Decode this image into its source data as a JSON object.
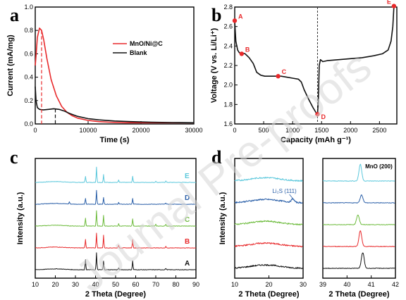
{
  "watermark": "Journal Pre-proofs",
  "colors": {
    "red": "#e8292b",
    "black": "#111111",
    "cyan": "#5cc8dc",
    "blue": "#2a5fa8",
    "green": "#6dbb3c"
  },
  "chart_data": [
    {
      "panel": "a",
      "type": "line",
      "xlabel": "Time (s)",
      "ylabel": "Current (mA/mg)",
      "xlim": [
        0,
        30000
      ],
      "ylim": [
        0,
        1.0
      ],
      "xticks": [
        0,
        10000,
        20000,
        30000
      ],
      "yticks": [
        0.0,
        0.2,
        0.4,
        0.6,
        0.8,
        1.0
      ],
      "legend_position": "top-right",
      "series": [
        {
          "name": "MnO/Ni@C",
          "color": "red",
          "x": [
            0,
            150,
            400,
            800,
            1200,
            1600,
            2200,
            3000,
            4000,
            5000,
            6000,
            7000,
            8000,
            9000,
            10000,
            12000,
            14000,
            17000,
            20000,
            25000,
            30000
          ],
          "y": [
            0.5,
            0.58,
            0.74,
            0.82,
            0.8,
            0.72,
            0.56,
            0.38,
            0.24,
            0.15,
            0.1,
            0.07,
            0.05,
            0.04,
            0.03,
            0.02,
            0.015,
            0.01,
            0.01,
            0.01,
            0.01
          ]
        },
        {
          "name": "Blank",
          "color": "black",
          "x": [
            0,
            150,
            400,
            800,
            1500,
            2500,
            3500,
            4500,
            5500,
            6500,
            8000,
            10000,
            12000,
            15000,
            18000,
            22000,
            26000,
            30000
          ],
          "y": [
            0.32,
            0.2,
            0.14,
            0.125,
            0.12,
            0.125,
            0.13,
            0.125,
            0.11,
            0.09,
            0.065,
            0.045,
            0.035,
            0.025,
            0.02,
            0.015,
            0.012,
            0.01
          ]
        }
      ],
      "markers": [
        {
          "series": "MnO/Ni@C",
          "x": 1200
        },
        {
          "series": "Blank",
          "x": 3800
        }
      ]
    },
    {
      "panel": "b",
      "type": "line",
      "xlabel": "Capacity (mAh g⁻¹)",
      "ylabel": "Voltage (V vs. Li/Li⁺)",
      "xlim": [
        0,
        2800
      ],
      "ylim": [
        1.6,
        2.8
      ],
      "xticks": [
        0,
        500,
        1000,
        1500,
        2000,
        2500
      ],
      "yticks": [
        1.6,
        1.8,
        2.0,
        2.2,
        2.4,
        2.6,
        2.8
      ],
      "series": [
        {
          "name": "",
          "color": "black",
          "x": [
            0,
            20,
            50,
            80,
            120,
            180,
            250,
            320,
            380,
            450,
            520,
            600,
            700,
            800,
            900,
            1000,
            1100,
            1150,
            1200,
            1280,
            1350,
            1400,
            1430
          ],
          "y": [
            2.65,
            2.45,
            2.36,
            2.33,
            2.33,
            2.32,
            2.28,
            2.22,
            2.13,
            2.1,
            2.09,
            2.09,
            2.09,
            2.09,
            2.08,
            2.07,
            2.06,
            2.03,
            1.95,
            1.85,
            1.77,
            1.72,
            1.7
          ]
        },
        {
          "name": "",
          "color": "black",
          "x": [
            1430,
            1445,
            1460,
            1480,
            1520,
            1600,
            1800,
            2000,
            2200,
            2400,
            2550,
            2650,
            2700,
            2730,
            2750
          ],
          "y": [
            1.7,
            1.85,
            2.2,
            2.26,
            2.24,
            2.25,
            2.26,
            2.27,
            2.28,
            2.3,
            2.32,
            2.36,
            2.45,
            2.6,
            2.81
          ]
        }
      ],
      "points": [
        {
          "label": "A",
          "x": 0,
          "y": 2.66
        },
        {
          "label": "B",
          "x": 120,
          "y": 2.32
        },
        {
          "label": "C",
          "x": 750,
          "y": 2.09
        },
        {
          "label": "D",
          "x": 1430,
          "y": 1.7
        },
        {
          "label": "E",
          "x": 2750,
          "y": 2.81
        }
      ],
      "vline_x": 1430
    },
    {
      "panel": "c",
      "type": "line",
      "xlabel": "2 Theta (Degree)",
      "ylabel": "Intensity (a.u.)",
      "xlim": [
        10,
        90
      ],
      "xticks": [
        10,
        20,
        30,
        40,
        50,
        60,
        70,
        80,
        90
      ],
      "series": [
        {
          "name": "E",
          "color": "cyan",
          "offset": 4,
          "peaks": [
            [
              35,
              0.22
            ],
            [
              40.5,
              0.55
            ],
            [
              44,
              0.28
            ],
            [
              51.5,
              0.08
            ],
            [
              58.5,
              0.22
            ],
            [
              70,
              0.05
            ],
            [
              75,
              0.06
            ]
          ]
        },
        {
          "name": "D",
          "color": "blue",
          "offset": 3,
          "peaks": [
            [
              27,
              0.08
            ],
            [
              35,
              0.2
            ],
            [
              40.5,
              0.5
            ],
            [
              44,
              0.25
            ],
            [
              51.5,
              0.07
            ],
            [
              58.5,
              0.2
            ],
            [
              75,
              0.05
            ]
          ]
        },
        {
          "name": "C",
          "color": "green",
          "offset": 2,
          "peaks": [
            [
              35,
              0.28
            ],
            [
              40.5,
              0.55
            ],
            [
              44,
              0.38
            ],
            [
              51.5,
              0.08
            ],
            [
              58.5,
              0.26
            ],
            [
              70,
              0.06
            ],
            [
              75,
              0.07
            ]
          ]
        },
        {
          "name": "B",
          "color": "red",
          "offset": 1,
          "peaks": [
            [
              35,
              0.3
            ],
            [
              40.5,
              0.52
            ],
            [
              44,
              0.45
            ],
            [
              51.5,
              0.1
            ],
            [
              58.5,
              0.3
            ],
            [
              75,
              0.05
            ]
          ]
        },
        {
          "name": "A",
          "color": "black",
          "offset": 0,
          "peaks": [
            [
              35,
              0.35
            ],
            [
              40.5,
              0.6
            ],
            [
              44,
              0.3
            ],
            [
              51.5,
              0.06
            ],
            [
              58.5,
              0.32
            ],
            [
              75,
              0.05
            ]
          ]
        }
      ]
    },
    {
      "panel": "d-left",
      "type": "line",
      "xlabel": "2 Theta (Degree)",
      "ylabel": "Intensity (a.u.)",
      "xlim": [
        10,
        30
      ],
      "xticks": [
        10,
        20,
        30
      ],
      "annotation": "Li₂S (111)",
      "series": [
        {
          "name": "E",
          "color": "cyan",
          "offset": 4
        },
        {
          "name": "D",
          "color": "blue",
          "offset": 3
        },
        {
          "name": "C",
          "color": "green",
          "offset": 2
        },
        {
          "name": "B",
          "color": "red",
          "offset": 1
        },
        {
          "name": "A",
          "color": "black",
          "offset": 0
        }
      ]
    },
    {
      "panel": "d-right",
      "type": "line",
      "xlabel": "2 Theta (Degree)",
      "ylabel": "",
      "xlim": [
        39,
        42
      ],
      "xticks": [
        39,
        40,
        41,
        42
      ],
      "annotation": "MnO (200)",
      "series": [
        {
          "name": "E",
          "color": "cyan",
          "offset": 4,
          "peak": [
            40.55,
            0.85
          ]
        },
        {
          "name": "D",
          "color": "blue",
          "offset": 3,
          "peak": [
            40.6,
            0.4
          ]
        },
        {
          "name": "C",
          "color": "green",
          "offset": 2,
          "peak": [
            40.45,
            0.5
          ]
        },
        {
          "name": "B",
          "color": "red",
          "offset": 1,
          "peak": [
            40.55,
            0.8
          ]
        },
        {
          "name": "A",
          "color": "black",
          "offset": 0,
          "peak": [
            40.65,
            0.8
          ]
        }
      ]
    }
  ]
}
